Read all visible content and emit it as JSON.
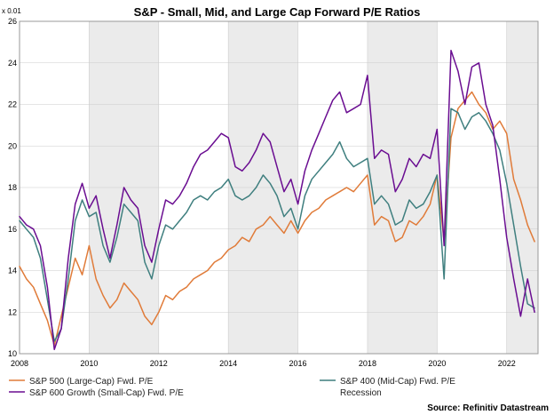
{
  "chart_data": {
    "type": "line",
    "title": "S&P - Small, Mid, and Large Cap Forward P/E Ratios",
    "y_unit_label": "x 0.01",
    "xlim": [
      2008,
      2022.9
    ],
    "ylim": [
      10,
      26
    ],
    "y_ticks": [
      10,
      12,
      14,
      16,
      18,
      20,
      22,
      24,
      26
    ],
    "x_ticks": [
      2008,
      2010,
      2012,
      2014,
      2016,
      2018,
      2020,
      2022
    ],
    "recession_shading": [
      [
        2010,
        2012
      ],
      [
        2014,
        2016
      ],
      [
        2018,
        2020
      ],
      [
        2022,
        2022.9
      ]
    ],
    "recession_label": "Recession",
    "colors": {
      "large_cap": "#e07b39",
      "mid_cap": "#3f7f7f",
      "small_cap": "#6a0d91",
      "shade": "#ebebeb",
      "grid": "#cccccc"
    },
    "series": [
      {
        "name": "S&P 500 (Large-Cap) Fwd. P/E",
        "key": "large_cap",
        "x": [
          2008.0,
          2008.2,
          2008.4,
          2008.6,
          2008.8,
          2009.0,
          2009.2,
          2009.4,
          2009.6,
          2009.8,
          2010.0,
          2010.2,
          2010.4,
          2010.6,
          2010.8,
          2011.0,
          2011.2,
          2011.4,
          2011.6,
          2011.8,
          2012.0,
          2012.2,
          2012.4,
          2012.6,
          2012.8,
          2013.0,
          2013.2,
          2013.4,
          2013.6,
          2013.8,
          2014.0,
          2014.2,
          2014.4,
          2014.6,
          2014.8,
          2015.0,
          2015.2,
          2015.4,
          2015.6,
          2015.8,
          2016.0,
          2016.2,
          2016.4,
          2016.6,
          2016.8,
          2017.0,
          2017.2,
          2017.4,
          2017.6,
          2017.8,
          2018.0,
          2018.2,
          2018.4,
          2018.6,
          2018.8,
          2019.0,
          2019.2,
          2019.4,
          2019.6,
          2019.8,
          2020.0,
          2020.2,
          2020.4,
          2020.6,
          2020.8,
          2021.0,
          2021.2,
          2021.4,
          2021.6,
          2021.8,
          2022.0,
          2022.2,
          2022.4,
          2022.6,
          2022.8
        ],
        "y": [
          14.2,
          13.6,
          13.2,
          12.4,
          11.6,
          10.4,
          11.8,
          13.2,
          14.6,
          13.8,
          15.2,
          13.6,
          12.8,
          12.2,
          12.6,
          13.4,
          13.0,
          12.6,
          11.8,
          11.4,
          12.0,
          12.8,
          12.6,
          13.0,
          13.2,
          13.6,
          13.8,
          14.0,
          14.4,
          14.6,
          15.0,
          15.2,
          15.6,
          15.4,
          16.0,
          16.2,
          16.6,
          16.2,
          15.8,
          16.4,
          15.8,
          16.4,
          16.8,
          17.0,
          17.4,
          17.6,
          17.8,
          18.0,
          17.8,
          18.2,
          18.6,
          16.2,
          16.6,
          16.4,
          15.4,
          15.6,
          16.4,
          16.2,
          16.6,
          17.2,
          18.6,
          15.4,
          20.4,
          21.8,
          22.2,
          22.6,
          22.0,
          21.6,
          20.8,
          21.2,
          20.6,
          18.4,
          17.4,
          16.2,
          15.4
        ]
      },
      {
        "name": "S&P 400 (Mid-Cap) Fwd. P/E",
        "key": "mid_cap",
        "x": [
          2008.0,
          2008.2,
          2008.4,
          2008.6,
          2008.8,
          2009.0,
          2009.2,
          2009.4,
          2009.6,
          2009.8,
          2010.0,
          2010.2,
          2010.4,
          2010.6,
          2010.8,
          2011.0,
          2011.2,
          2011.4,
          2011.6,
          2011.8,
          2012.0,
          2012.2,
          2012.4,
          2012.6,
          2012.8,
          2013.0,
          2013.2,
          2013.4,
          2013.6,
          2013.8,
          2014.0,
          2014.2,
          2014.4,
          2014.6,
          2014.8,
          2015.0,
          2015.2,
          2015.4,
          2015.6,
          2015.8,
          2016.0,
          2016.2,
          2016.4,
          2016.6,
          2016.8,
          2017.0,
          2017.2,
          2017.4,
          2017.6,
          2017.8,
          2018.0,
          2018.2,
          2018.4,
          2018.6,
          2018.8,
          2019.0,
          2019.2,
          2019.4,
          2019.6,
          2019.8,
          2020.0,
          2020.2,
          2020.4,
          2020.6,
          2020.8,
          2021.0,
          2021.2,
          2021.4,
          2021.6,
          2021.8,
          2022.0,
          2022.2,
          2022.4,
          2022.6,
          2022.8
        ],
        "y": [
          16.4,
          16.0,
          15.6,
          14.6,
          12.6,
          10.6,
          11.2,
          13.6,
          16.4,
          17.4,
          16.6,
          16.8,
          15.2,
          14.4,
          15.6,
          17.2,
          16.8,
          16.4,
          14.4,
          13.6,
          15.2,
          16.2,
          16.0,
          16.4,
          16.8,
          17.4,
          17.6,
          17.4,
          17.8,
          18.0,
          18.4,
          17.6,
          17.4,
          17.6,
          18.0,
          18.6,
          18.2,
          17.6,
          16.6,
          17.0,
          16.0,
          17.6,
          18.4,
          18.8,
          19.2,
          19.6,
          20.2,
          19.4,
          19.0,
          19.2,
          19.4,
          17.2,
          17.6,
          17.2,
          16.2,
          16.4,
          17.4,
          17.0,
          17.2,
          17.8,
          18.6,
          13.6,
          21.8,
          21.6,
          20.8,
          21.4,
          21.6,
          21.2,
          20.6,
          19.8,
          18.2,
          16.2,
          14.2,
          12.4,
          12.2
        ]
      },
      {
        "name": "S&P 600 Growth (Small-Cap) Fwd. P/E",
        "key": "small_cap",
        "x": [
          2008.0,
          2008.2,
          2008.4,
          2008.6,
          2008.8,
          2009.0,
          2009.2,
          2009.4,
          2009.6,
          2009.8,
          2010.0,
          2010.2,
          2010.4,
          2010.6,
          2010.8,
          2011.0,
          2011.2,
          2011.4,
          2011.6,
          2011.8,
          2012.0,
          2012.2,
          2012.4,
          2012.6,
          2012.8,
          2013.0,
          2013.2,
          2013.4,
          2013.6,
          2013.8,
          2014.0,
          2014.2,
          2014.4,
          2014.6,
          2014.8,
          2015.0,
          2015.2,
          2015.4,
          2015.6,
          2015.8,
          2016.0,
          2016.2,
          2016.4,
          2016.6,
          2016.8,
          2017.0,
          2017.2,
          2017.4,
          2017.6,
          2017.8,
          2018.0,
          2018.2,
          2018.4,
          2018.6,
          2018.8,
          2019.0,
          2019.2,
          2019.4,
          2019.6,
          2019.8,
          2020.0,
          2020.2,
          2020.4,
          2020.6,
          2020.8,
          2021.0,
          2021.2,
          2021.4,
          2021.6,
          2021.8,
          2022.0,
          2022.2,
          2022.4,
          2022.6,
          2022.8
        ],
        "y": [
          16.6,
          16.2,
          16.0,
          15.2,
          13.2,
          10.2,
          11.2,
          14.6,
          17.2,
          18.2,
          17.0,
          17.6,
          16.0,
          14.6,
          16.2,
          18.0,
          17.4,
          17.0,
          15.2,
          14.4,
          16.0,
          17.4,
          17.2,
          17.6,
          18.2,
          19.0,
          19.6,
          19.8,
          20.2,
          20.6,
          20.4,
          19.0,
          18.8,
          19.2,
          19.8,
          20.6,
          20.2,
          19.0,
          17.8,
          18.4,
          17.2,
          18.8,
          19.8,
          20.6,
          21.4,
          22.2,
          22.6,
          21.6,
          21.8,
          22.0,
          23.4,
          19.4,
          19.8,
          19.6,
          17.8,
          18.4,
          19.4,
          19.0,
          19.6,
          19.4,
          20.8,
          15.2,
          24.6,
          23.6,
          22.0,
          23.8,
          24.0,
          22.0,
          21.0,
          18.4,
          15.6,
          13.6,
          11.8,
          13.6,
          12.0
        ]
      }
    ]
  },
  "source": "Source: Refinitiv Datastream"
}
